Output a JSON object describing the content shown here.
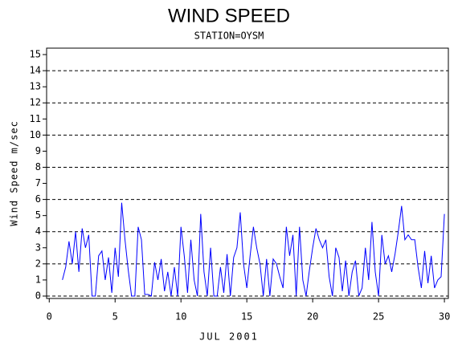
{
  "chart_data": {
    "type": "line",
    "title": "WIND SPEED",
    "subtitle": "STATION=OYSM",
    "x_label": "JUL 2001",
    "y_label": "Wind Speed m/sec",
    "x": [
      1,
      1.25,
      1.5,
      1.75,
      2,
      2.25,
      2.5,
      2.75,
      3,
      3.25,
      3.5,
      3.75,
      4,
      4.25,
      4.5,
      4.75,
      5,
      5.25,
      5.5,
      5.75,
      6,
      6.25,
      6.5,
      6.75,
      7,
      7.25,
      7.5,
      7.75,
      8,
      8.25,
      8.5,
      8.75,
      9,
      9.25,
      9.5,
      9.75,
      10,
      10.25,
      10.5,
      10.75,
      11,
      11.25,
      11.5,
      11.75,
      12,
      12.25,
      12.5,
      12.75,
      13,
      13.25,
      13.5,
      13.75,
      14,
      14.25,
      14.5,
      14.75,
      15,
      15.25,
      15.5,
      15.75,
      16,
      16.25,
      16.5,
      16.75,
      17,
      17.25,
      17.5,
      17.75,
      18,
      18.25,
      18.5,
      18.75,
      19,
      19.25,
      19.5,
      19.75,
      20,
      20.25,
      20.5,
      20.75,
      21,
      21.25,
      21.5,
      21.75,
      22,
      22.25,
      22.5,
      22.75,
      23,
      23.25,
      23.5,
      23.75,
      24,
      24.25,
      24.5,
      24.75,
      25,
      25.25,
      25.5,
      25.75,
      26,
      26.25,
      26.5,
      26.75,
      27,
      27.25,
      27.5,
      27.75,
      28,
      28.25,
      28.5,
      28.75,
      29,
      29.25,
      29.5,
      29.75,
      30
    ],
    "series": [
      {
        "name": "Wind Speed",
        "color": "#0000ff",
        "values": [
          1.0,
          1.8,
          3.4,
          2.0,
          4.0,
          1.5,
          4.2,
          3.0,
          3.8,
          0.0,
          0.0,
          2.5,
          2.8,
          1.0,
          2.4,
          0.2,
          3.0,
          1.2,
          5.8,
          3.5,
          1.6,
          0.0,
          0.0,
          4.3,
          3.5,
          0.1,
          0.1,
          0.0,
          2.1,
          1.0,
          2.3,
          0.3,
          1.5,
          0.0,
          1.8,
          0.0,
          4.3,
          2.5,
          0.2,
          3.5,
          1.0,
          0.0,
          5.1,
          1.5,
          0.0,
          3.0,
          0.0,
          0.0,
          1.8,
          0.2,
          2.6,
          0.0,
          2.4,
          3.0,
          5.2,
          2.0,
          0.5,
          2.5,
          4.3,
          3.0,
          2.0,
          0.0,
          2.3,
          0.0,
          2.3,
          2.0,
          1.2,
          0.5,
          4.3,
          2.5,
          3.8,
          0.0,
          4.3,
          1.0,
          0.0,
          1.6,
          3.0,
          4.2,
          3.5,
          3.0,
          3.5,
          1.2,
          0.0,
          3.0,
          2.4,
          0.3,
          2.2,
          0.0,
          1.5,
          2.2,
          0.0,
          0.5,
          3.0,
          1.0,
          4.6,
          1.5,
          0.0,
          3.8,
          2.0,
          2.5,
          1.5,
          2.6,
          4.0,
          5.6,
          3.5,
          3.8,
          3.5,
          3.5,
          1.8,
          0.5,
          2.8,
          0.8,
          2.5,
          0.5,
          1.0,
          1.2,
          5.1
        ]
      }
    ],
    "xlim": [
      -0.2,
      30.3
    ],
    "xticks": [
      0,
      5,
      10,
      15,
      20,
      25,
      30
    ],
    "ylim": [
      -0.15,
      15.4
    ],
    "yticks": [
      0,
      1,
      2,
      3,
      4,
      5,
      6,
      7,
      8,
      9,
      10,
      11,
      12,
      13,
      14,
      15
    ],
    "grid_lines": [
      0,
      2,
      4,
      6,
      8,
      10,
      12,
      14
    ]
  }
}
